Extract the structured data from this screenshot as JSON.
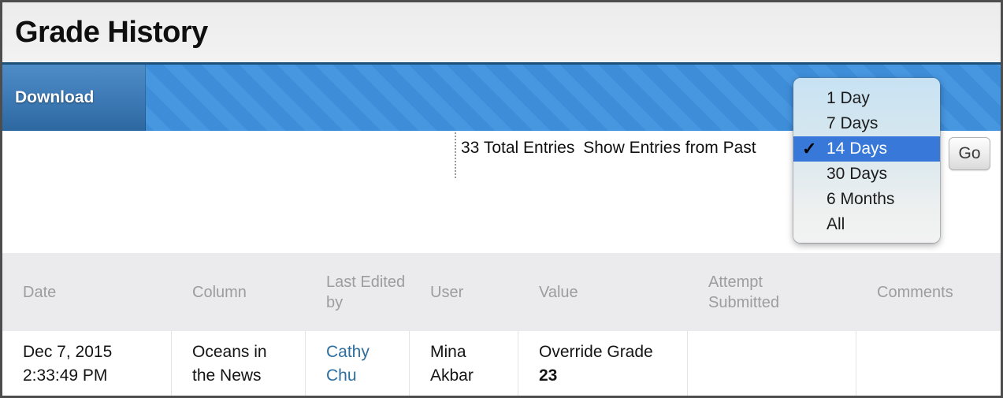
{
  "page_title": "Grade History",
  "action_bar": {
    "download_label": "Download"
  },
  "entries_bar": {
    "total_entries": "33 Total Entries",
    "show_entries_label": "Show Entries from Past",
    "go_label": "Go"
  },
  "duration_menu": {
    "checkmark": "✓",
    "selected": "14 Days",
    "options": [
      {
        "label": "1 Day"
      },
      {
        "label": "7 Days"
      },
      {
        "label": "14 Days"
      },
      {
        "label": "30 Days"
      },
      {
        "label": "6 Months"
      },
      {
        "label": "All"
      }
    ]
  },
  "table": {
    "headers": [
      "Date",
      "Column",
      "Last Edited by",
      "User",
      "Value",
      "Attempt Submitted",
      "Comments"
    ],
    "rows": [
      {
        "date_lines": [
          "Dec 7, 2015",
          "2:33:49 PM"
        ],
        "column_lines": [
          "Oceans in",
          "the News"
        ],
        "last_edited_by_lines": [
          "Cathy",
          "Chu"
        ],
        "user_lines": [
          "Mina",
          "Akbar"
        ],
        "value_label": "Override Grade",
        "value_number": "23",
        "attempt_submitted": "",
        "comments": ""
      }
    ]
  },
  "colors": {
    "bar_blue": "#3e8dd9",
    "download_tab_blue": "#2d67a0",
    "selection_blue": "#3878d8",
    "link_blue": "#2d6e9e",
    "header_gray": "#ebebed"
  }
}
